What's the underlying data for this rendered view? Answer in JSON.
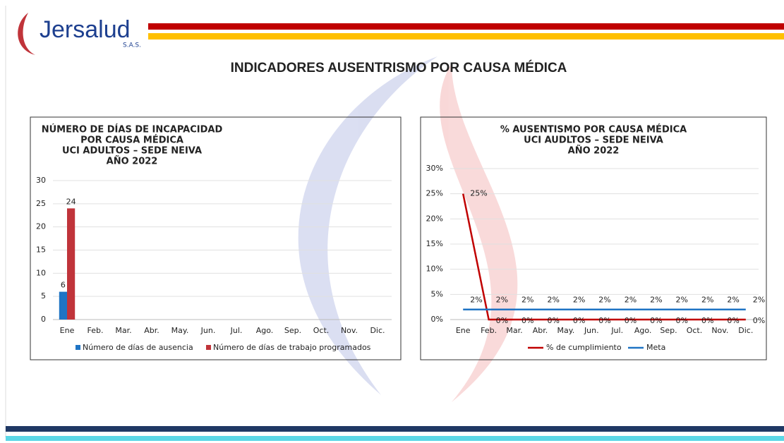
{
  "header": {
    "logo": "Jersalud",
    "logo_sub": "S.A.S.",
    "title": "INDICADORES AUSENTRISMO POR CAUSA MÉDICA"
  },
  "chart_data": [
    {
      "type": "bar",
      "title": [
        "NÚMERO DE DÍAS DE INCAPACIDAD",
        "POR CAUSA MÉDICA",
        "UCI ADULTOS – SEDE NEIVA",
        "AÑO 2022"
      ],
      "categories": [
        "Ene",
        "Feb.",
        "Mar.",
        "Abr.",
        "May.",
        "Jun.",
        "Jul.",
        "Ago.",
        "Sep.",
        "Oct.",
        "Nov.",
        "Dic."
      ],
      "series": [
        {
          "name": "Número de días de ausencia",
          "color": "#1f74c4",
          "values": [
            6,
            null,
            null,
            null,
            null,
            null,
            null,
            null,
            null,
            null,
            null,
            null
          ]
        },
        {
          "name": "Número de días de trabajo programados",
          "color": "#c0343a",
          "values": [
            24,
            null,
            null,
            null,
            null,
            null,
            null,
            null,
            null,
            null,
            null,
            null
          ]
        }
      ],
      "ylim": [
        0,
        30
      ],
      "yticks": [
        0,
        5,
        10,
        15,
        20,
        25,
        30
      ],
      "grid": true,
      "legend": "bottom"
    },
    {
      "type": "line",
      "title": [
        "% AUSENTISMO POR CAUSA MÉDICA",
        "UCI AUDLTOS – SEDE NEIVA",
        "AÑO 2022"
      ],
      "categories": [
        "Ene",
        "Feb.",
        "Mar.",
        "Abr.",
        "May.",
        "Jun.",
        "Jul.",
        "Ago.",
        "Sep.",
        "Oct.",
        "Nov.",
        "Dic."
      ],
      "series": [
        {
          "name": "% de cumplimiento",
          "color": "#c00000",
          "values": [
            25,
            0,
            0,
            0,
            0,
            0,
            0,
            0,
            0,
            0,
            0,
            0
          ],
          "value_labels": [
            "25%",
            "0%",
            "0%",
            "0%",
            "0%",
            "0%",
            "0%",
            "0%",
            "0%",
            "0%",
            "0%",
            "0%"
          ]
        },
        {
          "name": "Meta",
          "color": "#1f74c4",
          "values": [
            2,
            2,
            2,
            2,
            2,
            2,
            2,
            2,
            2,
            2,
            2,
            2
          ],
          "value_labels": [
            "2%",
            "2%",
            "2%",
            "2%",
            "2%",
            "2%",
            "2%",
            "2%",
            "2%",
            "2%",
            "2%",
            "2%"
          ]
        }
      ],
      "ylim": [
        0,
        30
      ],
      "yticks": [
        {
          "value": 0,
          "label": "0%"
        },
        {
          "value": 5,
          "label": "5%"
        },
        {
          "value": 10,
          "label": "10%"
        },
        {
          "value": 15,
          "label": "15%"
        },
        {
          "value": 20,
          "label": "20%"
        },
        {
          "value": 25,
          "label": "25%"
        },
        {
          "value": 30,
          "label": "30%"
        }
      ],
      "grid": true,
      "legend": "bottom"
    }
  ]
}
